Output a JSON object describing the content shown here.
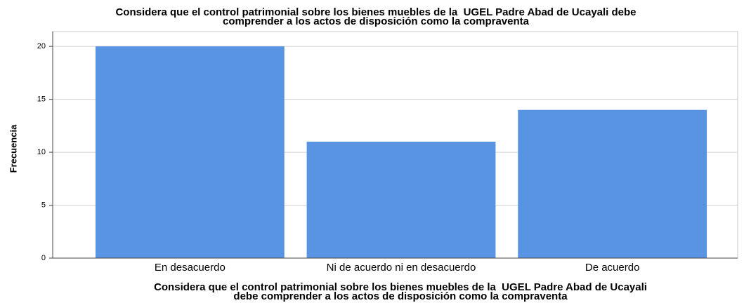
{
  "chart_data": {
    "type": "bar",
    "title": [
      "Considera que el control patrimonial sobre los bienes muebles de la  UGEL Padre Abad de Ucayali debe",
      "comprender a los actos de disposición como la compraventa"
    ],
    "x_label": [
      "Considera que el control patrimonial sobre los bienes muebles de la  UGEL Padre Abad de Ucayali",
      "debe comprender a los actos de disposición como la compraventa"
    ],
    "y_label": "Frecuencia",
    "categories": [
      "En desacuerdo",
      "Ni de acuerdo ni en desacuerdo",
      "De acuerdo"
    ],
    "values": [
      20,
      11,
      14
    ],
    "color": "#5894e2",
    "ylim": [
      0,
      21.4
    ],
    "yticks": [
      0,
      5,
      10,
      15,
      20
    ],
    "grid": true
  }
}
